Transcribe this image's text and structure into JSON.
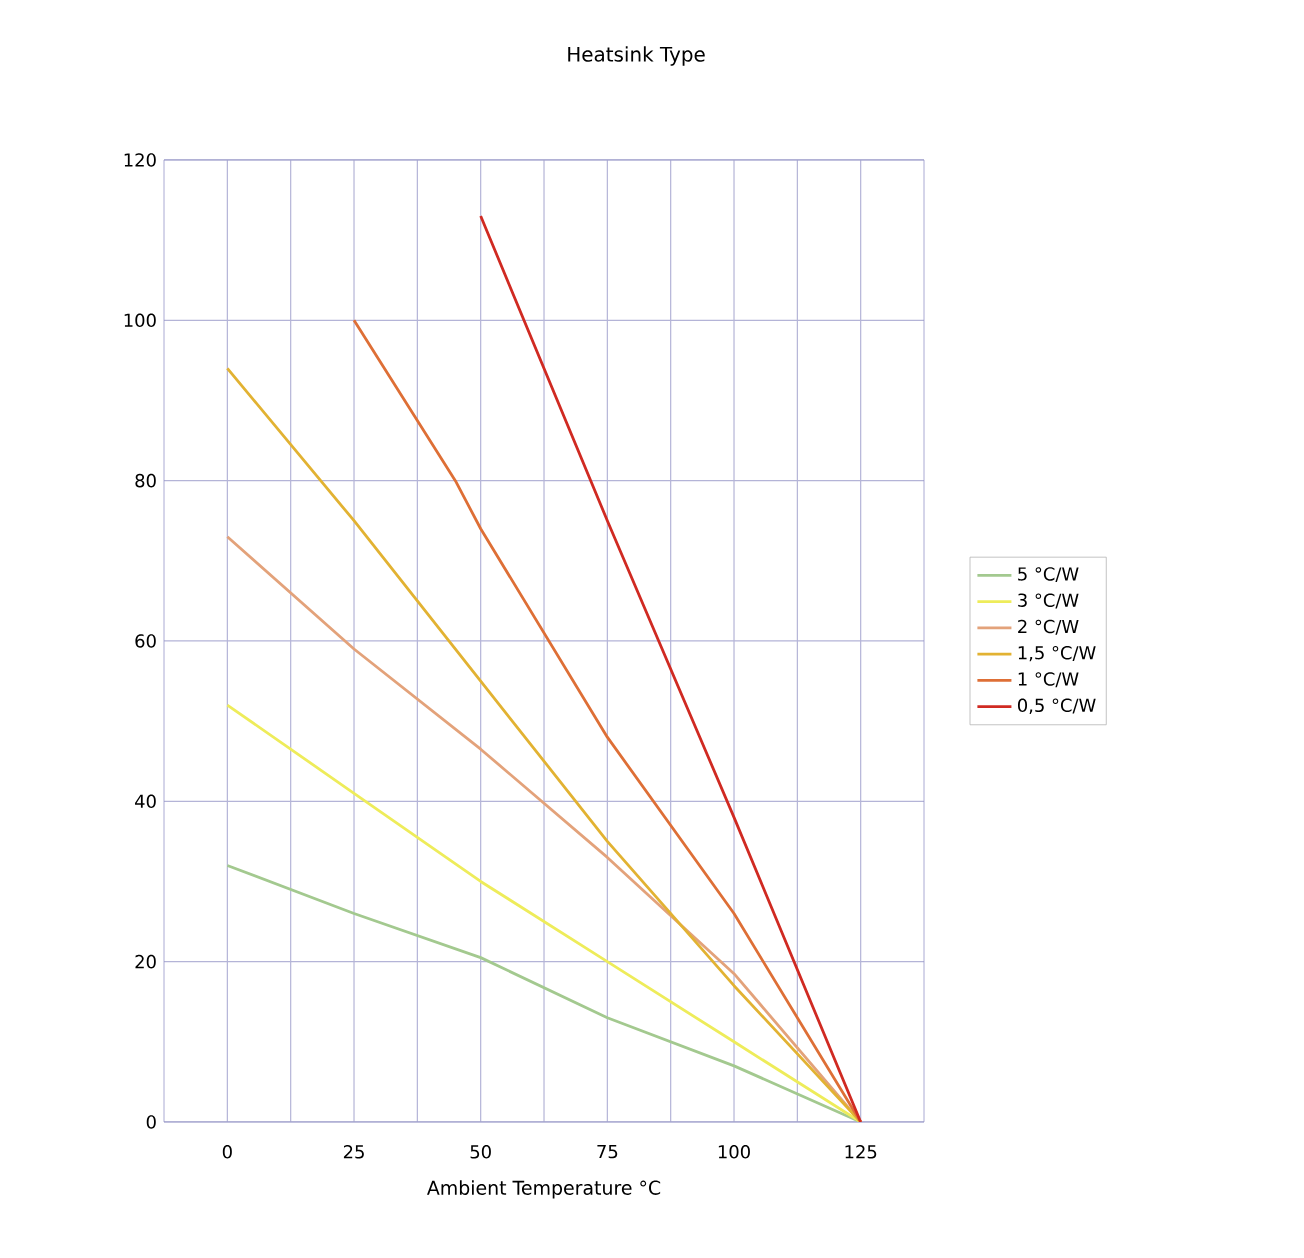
{
  "chart_data": {
    "type": "line",
    "title": "Heatsink Type",
    "xlabel": "Ambient Temperature °C",
    "xlim": [
      -12.5,
      137.5
    ],
    "xticks": [
      0,
      25,
      50,
      75,
      100,
      125
    ],
    "ylim": [
      0,
      120
    ],
    "yticks": [
      0,
      20,
      40,
      60,
      80,
      100,
      120
    ],
    "grid": true,
    "legend": "right",
    "marker": "none",
    "line_style": "solid",
    "series": [
      {
        "name": "5 °C/W",
        "color": "#a3c98f",
        "x": [
          0,
          25,
          50,
          75,
          100,
          125
        ],
        "values": [
          32,
          26,
          20.5,
          13,
          7,
          0
        ]
      },
      {
        "name": "3 °C/W",
        "color": "#eeec5a",
        "x": [
          0,
          25,
          50,
          75,
          100,
          125
        ],
        "values": [
          52,
          41,
          30,
          20,
          10,
          0
        ]
      },
      {
        "name": "2 °C/W",
        "color": "#e3a27a",
        "x": [
          0,
          25,
          50,
          75,
          100,
          125
        ],
        "values": [
          73,
          59,
          46.5,
          33,
          18.5,
          0
        ]
      },
      {
        "name": "1,5 °C/W",
        "color": "#e2b232",
        "x": [
          0,
          25,
          50,
          75,
          100,
          125
        ],
        "values": [
          94,
          75,
          55,
          35,
          17,
          0
        ]
      },
      {
        "name": "1 °C/W",
        "color": "#de6f36",
        "x": [
          25,
          45,
          50,
          75,
          100,
          125
        ],
        "values": [
          100,
          80,
          74,
          48,
          26,
          0
        ]
      },
      {
        "name": "0,5 °C/W",
        "color": "#d02a22",
        "x": [
          50,
          75,
          100,
          125
        ],
        "values": [
          113,
          75,
          38,
          0
        ]
      }
    ]
  }
}
